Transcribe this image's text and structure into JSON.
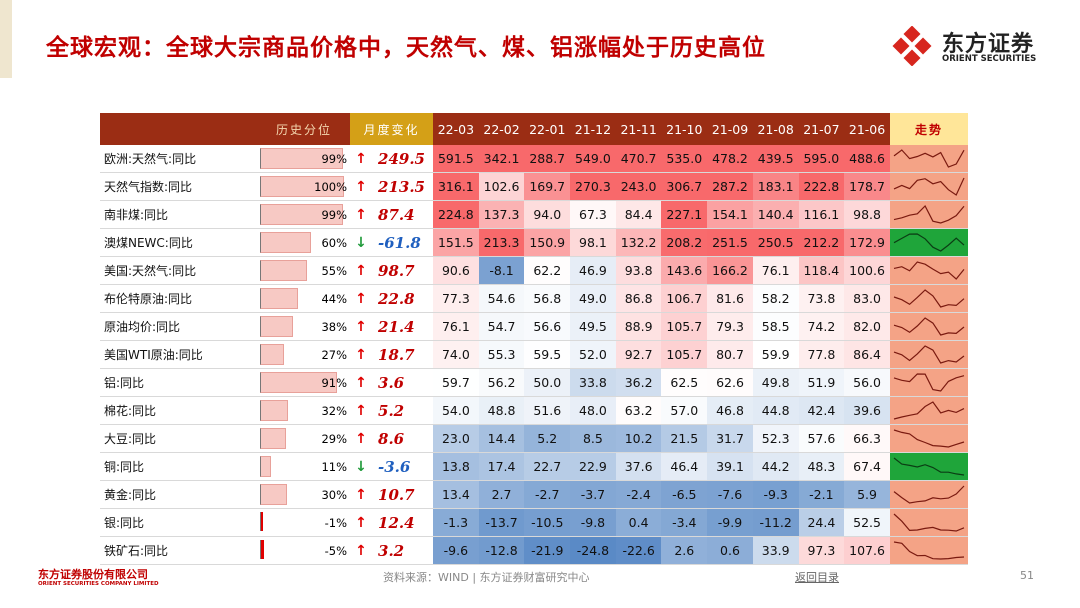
{
  "header": {
    "title": "全球宏观：全球大宗商品价格中，天然气、煤、铝涨幅处于历史高位",
    "logo": {
      "name": "东方证券",
      "english": "ORIENT SECURITIES"
    }
  },
  "table": {
    "columns": [
      "历史分位",
      "月度变化",
      "22-03",
      "22-02",
      "22-01",
      "21-12",
      "21-11",
      "21-10",
      "21-09",
      "21-08",
      "21-07",
      "21-06",
      "走势"
    ],
    "rows": [
      {
        "name": "欧洲:天然气:同比",
        "percentile": "99%",
        "arrow": "↑",
        "change": "249.5",
        "values": [
          "591.5",
          "342.1",
          "288.7",
          "549.0",
          "470.7",
          "535.0",
          "478.2",
          "439.5",
          "595.0",
          "488.6"
        ]
      },
      {
        "name": "天然气指数:同比",
        "percentile": "100%",
        "arrow": "↑",
        "change": "213.5",
        "values": [
          "316.1",
          "102.6",
          "169.7",
          "270.3",
          "243.0",
          "306.7",
          "287.2",
          "183.1",
          "222.8",
          "178.7"
        ]
      },
      {
        "name": "南非煤:同比",
        "percentile": "99%",
        "arrow": "↑",
        "change": "87.4",
        "values": [
          "224.8",
          "137.3",
          "94.0",
          "67.3",
          "84.4",
          "227.1",
          "154.1",
          "140.4",
          "116.1",
          "98.8"
        ]
      },
      {
        "name": "澳煤NEWC:同比",
        "percentile": "60%",
        "arrow": "↓",
        "change": "-61.8",
        "values": [
          "151.5",
          "213.3",
          "150.9",
          "98.1",
          "132.2",
          "208.2",
          "251.5",
          "250.5",
          "212.2",
          "172.9"
        ]
      },
      {
        "name": "美国:天然气:同比",
        "percentile": "55%",
        "arrow": "↑",
        "change": "98.7",
        "values": [
          "90.6",
          "-8.1",
          "62.2",
          "46.9",
          "93.8",
          "143.6",
          "166.2",
          "76.1",
          "118.4",
          "100.6"
        ]
      },
      {
        "name": "布伦特原油:同比",
        "percentile": "44%",
        "arrow": "↑",
        "change": "22.8",
        "values": [
          "77.3",
          "54.6",
          "56.8",
          "49.0",
          "86.8",
          "106.7",
          "81.6",
          "58.2",
          "73.8",
          "83.0"
        ]
      },
      {
        "name": "原油均价:同比",
        "percentile": "38%",
        "arrow": "↑",
        "change": "21.4",
        "values": [
          "76.1",
          "54.7",
          "56.6",
          "49.5",
          "88.9",
          "105.7",
          "79.3",
          "58.5",
          "74.2",
          "82.0"
        ]
      },
      {
        "name": "美国WTI原油:同比",
        "percentile": "27%",
        "arrow": "↑",
        "change": "18.7",
        "values": [
          "74.0",
          "55.3",
          "59.5",
          "52.0",
          "92.7",
          "105.7",
          "80.7",
          "59.9",
          "77.8",
          "86.4"
        ]
      },
      {
        "name": "铝:同比",
        "percentile": "91%",
        "arrow": "↑",
        "change": "3.6",
        "values": [
          "59.7",
          "56.2",
          "50.0",
          "33.8",
          "36.2",
          "62.5",
          "62.6",
          "49.8",
          "51.9",
          "56.0"
        ]
      },
      {
        "name": "棉花:同比",
        "percentile": "32%",
        "arrow": "↑",
        "change": "5.2",
        "values": [
          "54.0",
          "48.8",
          "51.6",
          "48.0",
          "63.2",
          "57.0",
          "46.8",
          "44.8",
          "42.4",
          "39.6"
        ]
      },
      {
        "name": "大豆:同比",
        "percentile": "29%",
        "arrow": "↑",
        "change": "8.6",
        "values": [
          "23.0",
          "14.4",
          "5.2",
          "8.5",
          "10.2",
          "21.5",
          "31.7",
          "52.3",
          "57.6",
          "66.3"
        ]
      },
      {
        "name": "铜:同比",
        "percentile": "11%",
        "arrow": "↓",
        "change": "-3.6",
        "values": [
          "13.8",
          "17.4",
          "22.7",
          "22.9",
          "37.6",
          "46.4",
          "39.1",
          "44.2",
          "48.3",
          "67.4"
        ]
      },
      {
        "name": "黄金:同比",
        "percentile": "30%",
        "arrow": "↑",
        "change": "10.7",
        "values": [
          "13.4",
          "2.7",
          "-2.7",
          "-3.7",
          "-2.4",
          "-6.5",
          "-7.6",
          "-9.3",
          "-2.1",
          "5.9"
        ]
      },
      {
        "name": "银:同比",
        "percentile": "-1%",
        "arrow": "↑",
        "change": "12.4",
        "values": [
          "-1.3",
          "-13.7",
          "-10.5",
          "-9.8",
          "0.4",
          "-3.4",
          "-9.9",
          "-11.2",
          "24.4",
          "52.5"
        ]
      },
      {
        "name": "铁矿石:同比",
        "percentile": "-5%",
        "arrow": "↑",
        "change": "3.2",
        "values": [
          "-9.6",
          "-12.8",
          "-21.9",
          "-24.8",
          "-22.6",
          "2.6",
          "0.6",
          "33.9",
          "97.3",
          "107.6"
        ]
      }
    ]
  },
  "footer": {
    "company": "东方证券股份有限公司",
    "company_en": "ORIENT SECURITIES COMPANY LIMITED",
    "source": "资料来源：WIND | 东方证券财富研究中心",
    "link": "返回目录",
    "page": "51"
  }
}
